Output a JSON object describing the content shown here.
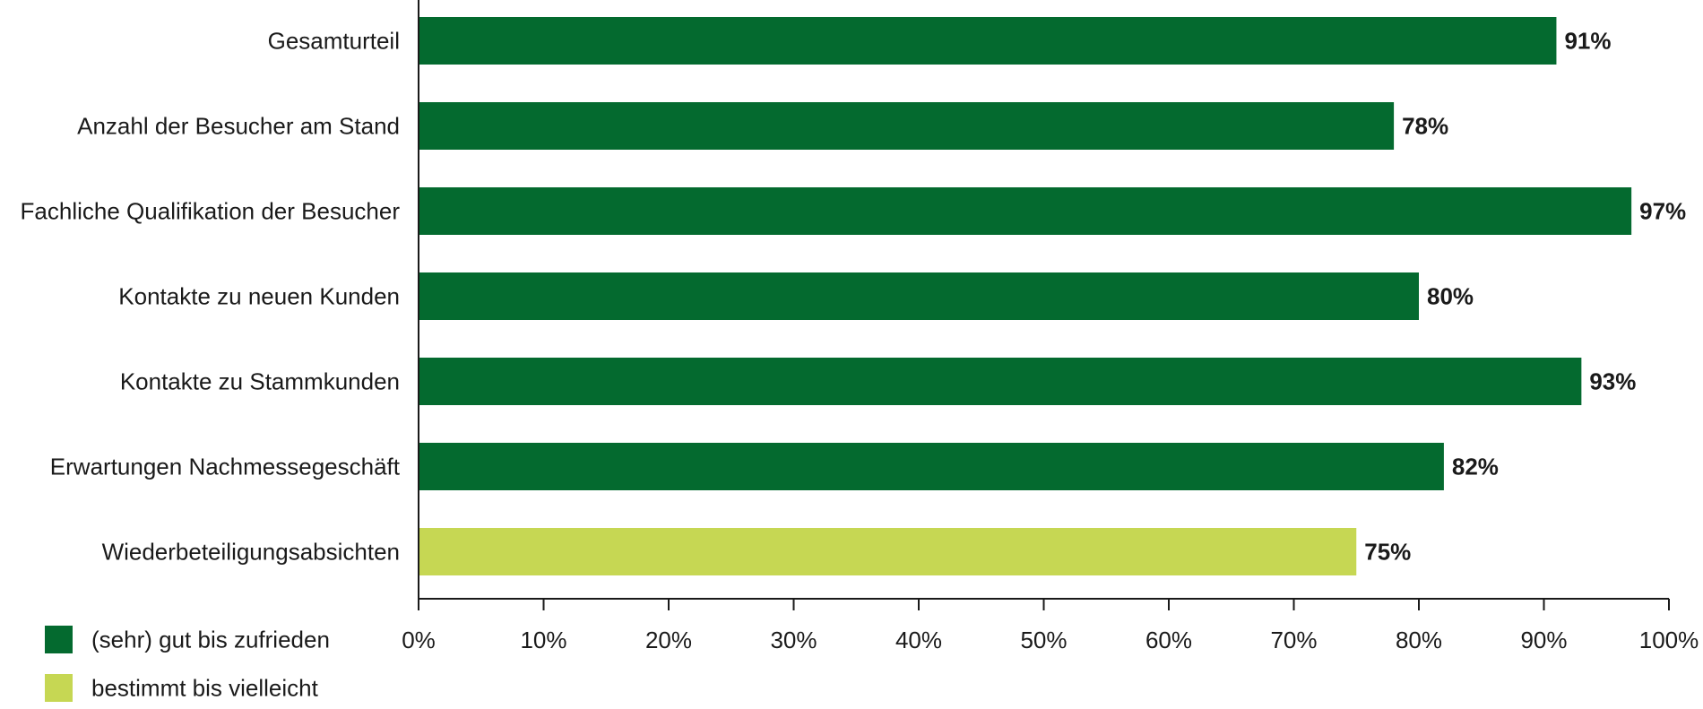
{
  "chart_data": {
    "type": "bar",
    "orientation": "horizontal",
    "categories": [
      "Gesamturteil",
      "Anzahl der Besucher am Stand",
      "Fachliche Qualifikation der Besucher",
      "Kontakte zu neuen Kunden",
      "Kontakte zu Stammkunden",
      "Erwartungen Nachmessegeschäft",
      "Wiederbeteiligungsabsichten"
    ],
    "values": [
      91,
      78,
      97,
      80,
      93,
      82,
      75
    ],
    "value_labels": [
      "91%",
      "78%",
      "97%",
      "80%",
      "93%",
      "82%",
      "75%"
    ],
    "bar_series": [
      0,
      0,
      0,
      0,
      0,
      0,
      1
    ],
    "series": [
      {
        "name": "(sehr) gut bis zufrieden",
        "color": "#046a2f"
      },
      {
        "name": "bestimmt bis vielleicht",
        "color": "#c6d753"
      }
    ],
    "x_ticks": [
      0,
      10,
      20,
      30,
      40,
      50,
      60,
      70,
      80,
      90,
      100
    ],
    "x_tick_labels": [
      "0%",
      "10%",
      "20%",
      "30%",
      "40%",
      "50%",
      "60%",
      "70%",
      "80%",
      "90%",
      "100%"
    ],
    "xlim": [
      0,
      100
    ],
    "title": "",
    "xlabel": "",
    "ylabel": "",
    "grid": false,
    "legend_position": "bottom-left"
  }
}
